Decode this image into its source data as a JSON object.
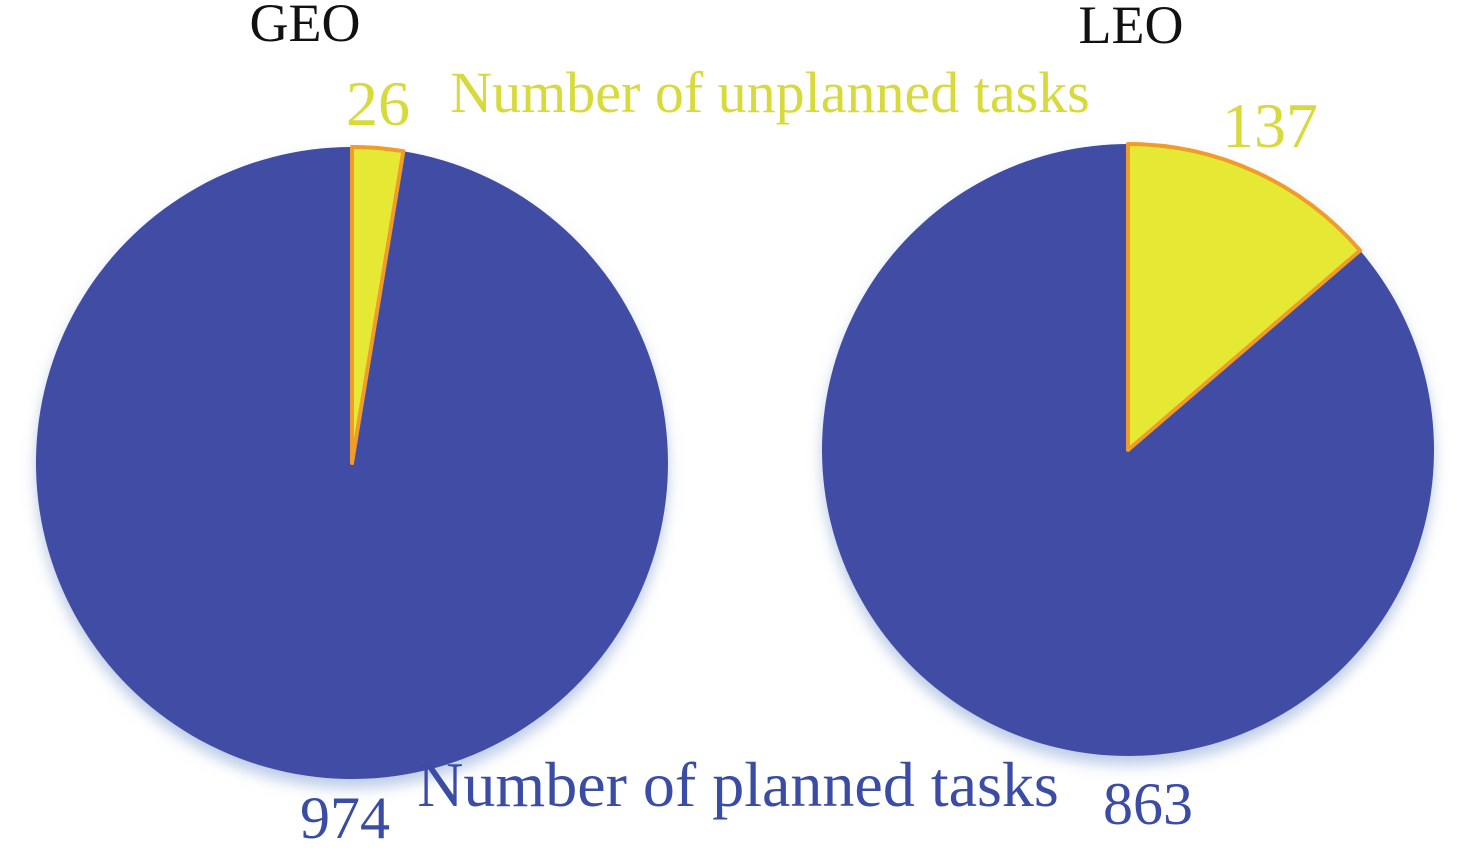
{
  "colors": {
    "planned_fill": "#414DA5",
    "unplanned_fill": "#E6E933",
    "slice_border": "#F09B2A",
    "unplanned_text": "#D6DA3A",
    "planned_text": "#3A4CA4",
    "title_text": "#111111",
    "background": "#FFFFFF"
  },
  "legend": {
    "unplanned_label": "Number of unplanned tasks",
    "planned_label": "Number of planned tasks"
  },
  "chart_data": [
    {
      "type": "pie",
      "title": "GEO",
      "total": 1000,
      "start_angle_deg": 0,
      "direction": "clockwise",
      "legend_position": "unplanned label top-center, planned label bottom-center",
      "slices": [
        {
          "name": "Number of unplanned tasks",
          "value": 26,
          "color_key": "unplanned"
        },
        {
          "name": "Number of planned tasks",
          "value": 974,
          "color_key": "planned"
        }
      ]
    },
    {
      "type": "pie",
      "title": "LEO",
      "total": 1000,
      "start_angle_deg": 0,
      "direction": "clockwise",
      "legend_position": "unplanned label top-center, planned label bottom-center",
      "slices": [
        {
          "name": "Number of unplanned tasks",
          "value": 137,
          "color_key": "unplanned"
        },
        {
          "name": "Number of planned tasks",
          "value": 863,
          "color_key": "planned"
        }
      ]
    }
  ]
}
